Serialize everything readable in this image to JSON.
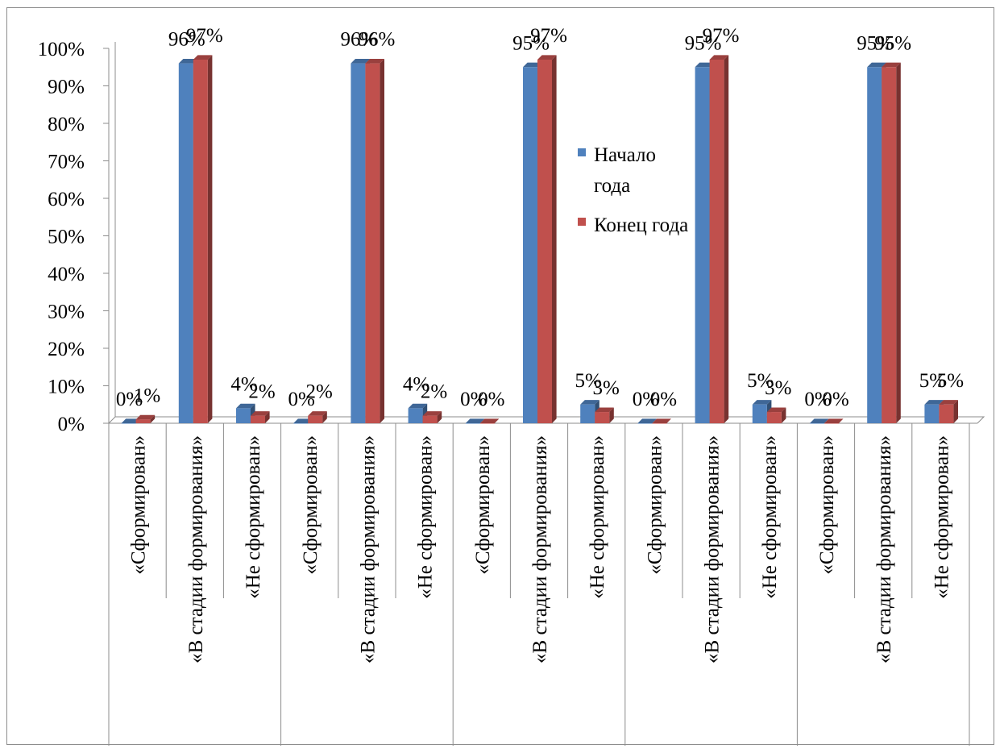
{
  "chart_data": {
    "type": "bar",
    "categories": [
      "«Сформирован»",
      "«В стадии формирования»",
      "«Не сформирован»",
      "«Сформирован»",
      "«В стадии формирования»",
      "«Не сформирован»",
      "«Сформирован»",
      "«В стадии формирования»",
      "«Не сформирован»",
      "«Сформирован»",
      "«В стадии формирования»",
      "«Не сформирован»",
      "«Сформирован»",
      "«В стадии формирования»",
      "«Не сформирован»"
    ],
    "series": [
      {
        "name": "Начало года",
        "color": "#4f81bd",
        "values": [
          0,
          96,
          4,
          0,
          96,
          4,
          0,
          95,
          5,
          0,
          95,
          5,
          0,
          95,
          5
        ],
        "labels": [
          "0%",
          "96%",
          "4%",
          "0%",
          "96%",
          "4%",
          "0%",
          "95%",
          "5%",
          "0%",
          "95%",
          "5%",
          "0%",
          "95%",
          "5%"
        ]
      },
      {
        "name": "Конец года",
        "color": "#c0504d",
        "values": [
          1,
          97,
          2,
          2,
          96,
          2,
          0,
          97,
          3,
          0,
          97,
          3,
          0,
          95,
          5
        ],
        "labels": [
          "1%",
          "97%",
          "2%",
          "2%",
          "96%",
          "2%",
          "0%",
          "97%",
          "3%",
          "0%",
          "97%",
          "3%",
          "0%",
          "95%",
          "5%"
        ]
      }
    ],
    "yticks": [
      "0%",
      "10%",
      "20%",
      "30%",
      "40%",
      "50%",
      "60%",
      "70%",
      "80%",
      "90%",
      "100%"
    ],
    "ylim": [
      0,
      100
    ],
    "grid": false,
    "legend_position": "center"
  },
  "legend": {
    "start_name": "Начало года",
    "end_name": "Конец года"
  }
}
